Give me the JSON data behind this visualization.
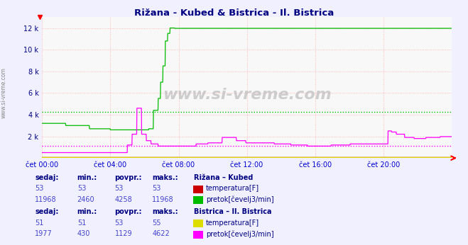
{
  "title": "Rižana - Kubed & Bistrica - Il. Bistrica",
  "title_color": "#000080",
  "bg_color": "#f0f0f0",
  "plot_bg_color": "#f8f8f8",
  "grid_color": "#ffaaaa",
  "watermark": "www.si-vreme.com",
  "xlabel_color": "#0000cc",
  "ylabel_color": "#000080",
  "ylim": [
    0,
    13000
  ],
  "yticks": [
    0,
    2000,
    4000,
    6000,
    8000,
    10000,
    12000
  ],
  "ytick_labels": [
    "",
    "2 k",
    "4 k",
    "6 k",
    "8 k",
    "10 k",
    "12 k"
  ],
  "xtick_labels": [
    "čet 00:00",
    "čet 04:00",
    "čet 08:00",
    "čet 12:00",
    "čet 16:00",
    "čet 20:00"
  ],
  "xtick_positions": [
    0,
    288,
    576,
    864,
    1152,
    1440
  ],
  "total_points": 1728,
  "rizana_temp_color": "#cc0000",
  "rizana_pretok_color": "#00bb00",
  "bistrica_temp_color": "#dddd00",
  "bistrica_pretok_color": "#ff00ff",
  "rizana_pretok_avg": 4258,
  "bistrica_pretok_avg": 1129,
  "rizana_temp_sedaj": 53,
  "rizana_temp_min": 53,
  "rizana_temp_povpr": 53,
  "rizana_temp_maks": 53,
  "rizana_pretok_sedaj": 11968,
  "rizana_pretok_min": 2460,
  "rizana_pretok_povpr": 4258,
  "rizana_pretok_maks": 11968,
  "bistrica_temp_sedaj": 51,
  "bistrica_temp_min": 51,
  "bistrica_temp_povpr": 53,
  "bistrica_temp_maks": 55,
  "bistrica_pretok_sedaj": 1977,
  "bistrica_pretok_min": 430,
  "bistrica_pretok_povpr": 1129,
  "bistrica_pretok_maks": 4622,
  "table_header_color": "#000080",
  "table_value_color": "#4444cc",
  "sidebar_text": "www.si-vreme.com",
  "sidebar_color": "#888888"
}
